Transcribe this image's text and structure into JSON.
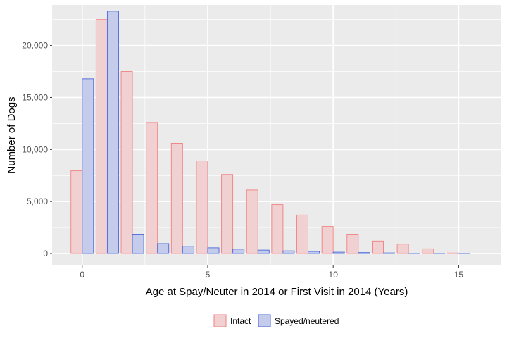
{
  "chart_data": {
    "type": "bar",
    "title": "",
    "xlabel": "Age at Spay/Neuter in 2014 or First Visit in 2014 (Years)",
    "ylabel": "Number of Dogs",
    "x_ticks": [
      {
        "value": 0,
        "label": "0"
      },
      {
        "value": 5,
        "label": "5"
      },
      {
        "value": 10,
        "label": "10"
      },
      {
        "value": 15,
        "label": "15"
      }
    ],
    "y_ticks": [
      {
        "value": 0,
        "label": "0"
      },
      {
        "value": 5000,
        "label": "5,000"
      },
      {
        "value": 10000,
        "label": "10,000"
      },
      {
        "value": 15000,
        "label": "15,000"
      },
      {
        "value": 20000,
        "label": "20,000"
      }
    ],
    "xlim": [
      -1.2,
      16.7
    ],
    "ylim": [
      -1150,
      23900
    ],
    "grid": true,
    "legend_position": "bottom",
    "x": [
      0,
      1,
      2,
      3,
      4,
      5,
      6,
      7,
      8,
      9,
      10,
      11,
      12,
      13,
      14,
      15
    ],
    "series": [
      {
        "name": "Intact",
        "fill": "#f0d0d0",
        "stroke": "#f08080",
        "values": [
          7950,
          22500,
          17500,
          12600,
          10600,
          8900,
          7600,
          6100,
          4700,
          3700,
          2600,
          1800,
          1200,
          900,
          450,
          50
        ]
      },
      {
        "name": "Spayed/neutered",
        "fill": "#c4cbeb",
        "stroke": "#4a67d9",
        "values": [
          16800,
          23300,
          1800,
          950,
          700,
          550,
          420,
          330,
          260,
          200,
          130,
          90,
          60,
          30,
          20,
          10
        ]
      }
    ]
  }
}
